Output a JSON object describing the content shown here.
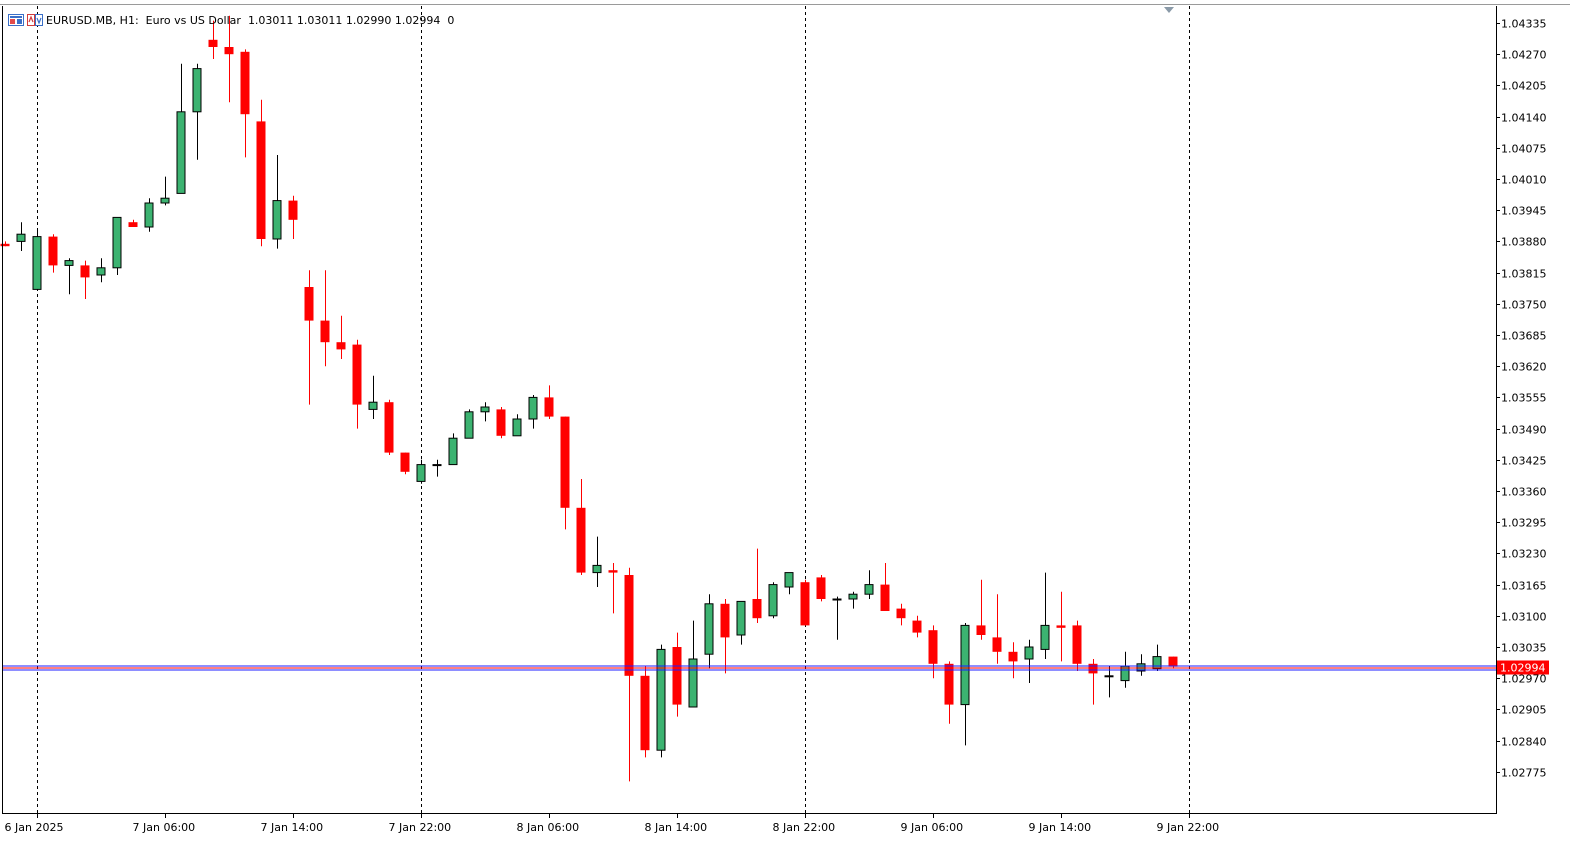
{
  "header": {
    "symbol": "EURUSD.MB, H1:",
    "description": "Euro vs US Dollar",
    "ohlc": "1.03011 1.03011 1.02990 1.02994",
    "volume": "0",
    "icons": [
      "chart-window-icon",
      "one-click-trading-icon"
    ]
  },
  "colors": {
    "bull": "#3cb371",
    "bear": "#ff0000",
    "outline": "#000000",
    "bid_line": "#1e1eff",
    "ask_line": "#ff0000",
    "price_label_bg": "#ff0000",
    "price_label_text": "#ffffff",
    "grid_separator": "#000000"
  },
  "chart_data": {
    "type": "candlestick",
    "symbol": "EURUSD.MB",
    "timeframe": "H1",
    "current_price": "1.02994",
    "ylim": [
      1.0274,
      1.0437
    ],
    "y_ticks": [
      "1.04335",
      "1.04270",
      "1.04205",
      "1.04140",
      "1.04075",
      "1.04010",
      "1.03945",
      "1.03880",
      "1.03815",
      "1.03750",
      "1.03685",
      "1.03620",
      "1.03555",
      "1.03490",
      "1.03425",
      "1.03360",
      "1.03295",
      "1.03230",
      "1.03165",
      "1.03100",
      "1.03035",
      "1.02970",
      "1.02905",
      "1.02840",
      "1.02775"
    ],
    "x_ticks": [
      {
        "label": "6 Jan 2025",
        "bar": 2
      },
      {
        "label": "7 Jan 06:00",
        "bar": 10
      },
      {
        "label": "7 Jan 14:00",
        "bar": 18
      },
      {
        "label": "7 Jan 22:00",
        "bar": 26
      },
      {
        "label": "8 Jan 06:00",
        "bar": 34
      },
      {
        "label": "8 Jan 14:00",
        "bar": 42
      },
      {
        "label": "8 Jan 22:00",
        "bar": 50
      },
      {
        "label": "9 Jan 06:00",
        "bar": 58
      },
      {
        "label": "9 Jan 14:00",
        "bar": 66
      },
      {
        "label": "9 Jan 22:00",
        "bar": 74
      }
    ],
    "day_separators_bar": [
      2,
      26,
      50,
      74
    ],
    "candles": [
      [
        1.03875,
        1.0388,
        1.0387,
        1.0387
      ],
      [
        1.0388,
        1.0392,
        1.0386,
        1.03895
      ],
      [
        1.0378,
        1.03905,
        1.0378,
        1.0389
      ],
      [
        1.0389,
        1.03895,
        1.03815,
        1.0383
      ],
      [
        1.0383,
        1.03845,
        1.0377,
        1.0384
      ],
      [
        1.0383,
        1.0384,
        1.0376,
        1.03805
      ],
      [
        1.0381,
        1.03845,
        1.03795,
        1.03825
      ],
      [
        1.03825,
        1.0393,
        1.0381,
        1.0393
      ],
      [
        1.0392,
        1.03925,
        1.0391,
        1.0391
      ],
      [
        1.0391,
        1.0397,
        1.039,
        1.0396
      ],
      [
        1.0396,
        1.04015,
        1.03955,
        1.0397
      ],
      [
        1.0398,
        1.0425,
        1.0398,
        1.0415
      ],
      [
        1.0415,
        1.0425,
        1.0405,
        1.0424
      ],
      [
        1.043,
        1.0434,
        1.0426,
        1.04285
      ],
      [
        1.04285,
        1.0435,
        1.0417,
        1.0427
      ],
      [
        1.04275,
        1.0428,
        1.04055,
        1.04145
      ],
      [
        1.0413,
        1.04175,
        1.0387,
        1.03885
      ],
      [
        1.03885,
        1.0406,
        1.03865,
        1.03965
      ],
      [
        1.03965,
        1.03975,
        1.03885,
        1.03925
      ],
      [
        1.03785,
        1.0382,
        1.0354,
        1.03715
      ],
      [
        1.03715,
        1.0382,
        1.0362,
        1.0367
      ],
      [
        1.0367,
        1.03725,
        1.03635,
        1.03655
      ],
      [
        1.03665,
        1.03675,
        1.0349,
        1.0354
      ],
      [
        1.0353,
        1.036,
        1.0351,
        1.03545
      ],
      [
        1.03545,
        1.0355,
        1.03435,
        1.0344
      ],
      [
        1.0344,
        1.0344,
        1.03395,
        1.034
      ],
      [
        1.0338,
        1.03425,
        1.03375,
        1.03415
      ],
      [
        1.03415,
        1.03425,
        1.0339,
        1.03415
      ],
      [
        1.03415,
        1.0348,
        1.03415,
        1.0347
      ],
      [
        1.0347,
        1.0353,
        1.0347,
        1.03525
      ],
      [
        1.03525,
        1.03545,
        1.03505,
        1.03535
      ],
      [
        1.0353,
        1.03535,
        1.0347,
        1.03475
      ],
      [
        1.03475,
        1.0352,
        1.03475,
        1.0351
      ],
      [
        1.0351,
        1.0356,
        1.0349,
        1.03555
      ],
      [
        1.03555,
        1.0358,
        1.0351,
        1.03515
      ],
      [
        1.03515,
        1.03515,
        1.0328,
        1.03325
      ],
      [
        1.03325,
        1.03385,
        1.03185,
        1.0319
      ],
      [
        1.0319,
        1.03265,
        1.0316,
        1.03205
      ],
      [
        1.03195,
        1.0321,
        1.03105,
        1.0319
      ],
      [
        1.03185,
        1.032,
        1.02755,
        1.02975
      ],
      [
        1.02975,
        1.02995,
        1.02805,
        1.0282
      ],
      [
        1.0282,
        1.0304,
        1.02805,
        1.0303
      ],
      [
        1.03035,
        1.03065,
        1.0289,
        1.02915
      ],
      [
        1.0291,
        1.0309,
        1.0291,
        1.0301
      ],
      [
        1.0302,
        1.03145,
        1.0299,
        1.03125
      ],
      [
        1.03125,
        1.03135,
        1.0298,
        1.03055
      ],
      [
        1.0306,
        1.0313,
        1.0304,
        1.0313
      ],
      [
        1.03135,
        1.0324,
        1.03085,
        1.03095
      ],
      [
        1.031,
        1.0317,
        1.03095,
        1.03165
      ],
      [
        1.0316,
        1.0319,
        1.03145,
        1.0319
      ],
      [
        1.0317,
        1.03175,
        1.0308,
        1.0308
      ],
      [
        1.0318,
        1.03185,
        1.0313,
        1.03135
      ],
      [
        1.03135,
        1.0314,
        1.0305,
        1.03135
      ],
      [
        1.03135,
        1.0315,
        1.03115,
        1.03145
      ],
      [
        1.03145,
        1.03195,
        1.03135,
        1.03165
      ],
      [
        1.03165,
        1.0321,
        1.0311,
        1.0311
      ],
      [
        1.03115,
        1.03125,
        1.0308,
        1.03095
      ],
      [
        1.0309,
        1.031,
        1.03055,
        1.03065
      ],
      [
        1.0307,
        1.0308,
        1.0297,
        1.03
      ],
      [
        1.03,
        1.03005,
        1.02875,
        1.02915
      ],
      [
        1.02915,
        1.03085,
        1.0283,
        1.0308
      ],
      [
        1.0308,
        1.03175,
        1.0305,
        1.0306
      ],
      [
        1.03055,
        1.03145,
        1.03,
        1.03025
      ],
      [
        1.03025,
        1.03045,
        1.0297,
        1.03005
      ],
      [
        1.0301,
        1.0305,
        1.0296,
        1.03035
      ],
      [
        1.0303,
        1.0319,
        1.0301,
        1.0308
      ],
      [
        1.0308,
        1.0315,
        1.03005,
        1.03075
      ],
      [
        1.0308,
        1.0309,
        1.02985,
        1.03
      ],
      [
        1.03,
        1.0301,
        1.02915,
        1.0298
      ],
      [
        1.02975,
        1.02995,
        1.0293,
        1.02975
      ],
      [
        1.02965,
        1.03025,
        1.0295,
        1.02995
      ],
      [
        1.02985,
        1.0302,
        1.02975,
        1.03
      ],
      [
        1.0299,
        1.0304,
        1.02985,
        1.03015
      ],
      [
        1.03015,
        1.03015,
        1.0299,
        1.02994
      ]
    ]
  }
}
